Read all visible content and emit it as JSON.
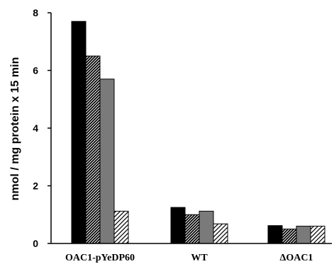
{
  "chart_data": {
    "type": "bar",
    "categories": [
      "OAC1-pYeDP60",
      "WT",
      "ΔOAC1"
    ],
    "series": [
      {
        "fill": "#000000",
        "pattern": "solid",
        "values": [
          7.7,
          1.25,
          0.62
        ]
      },
      {
        "fill": "#000000",
        "pattern": "dense-hatch",
        "values": [
          6.5,
          1.0,
          0.5
        ]
      },
      {
        "fill": "#7a7a7a",
        "pattern": "solid",
        "values": [
          5.7,
          1.12,
          0.6
        ]
      },
      {
        "fill": "#ffffff",
        "pattern": "sparse-hatch",
        "values": [
          1.12,
          0.68,
          0.6
        ]
      }
    ],
    "ylabel": "nmol / mg protein x 15 min",
    "xlabel": "",
    "ylim": [
      0,
      8
    ],
    "yticks": [
      0,
      2,
      4,
      6,
      8
    ],
    "grid": false,
    "legend": "none"
  }
}
